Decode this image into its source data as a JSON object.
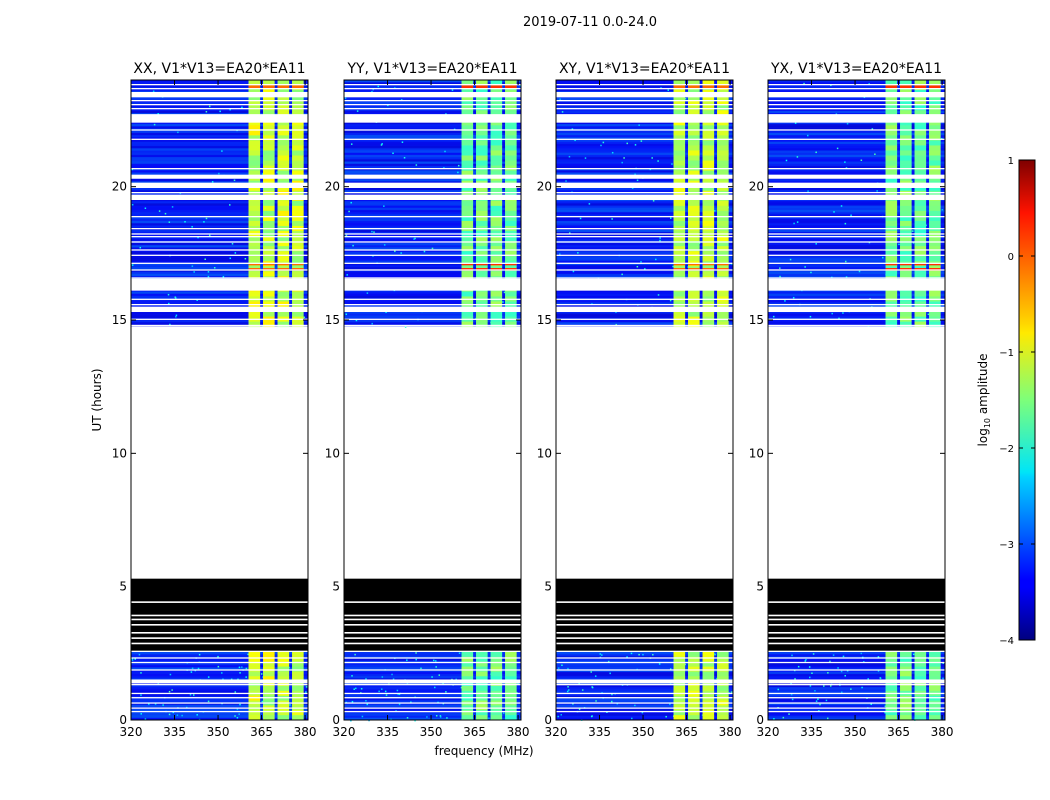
{
  "figure": {
    "suptitle": "2019-07-11 0.0-24.0",
    "xlabel": "frequency (MHz)",
    "ylabel": "UT (hours)"
  },
  "chart_data": {
    "type": "heatmap",
    "x_range_mhz": [
      320,
      381
    ],
    "y_range_hours": [
      0,
      24
    ],
    "xticks": [
      320,
      335,
      350,
      365,
      380
    ],
    "yticks": [
      0,
      5,
      10,
      15,
      20
    ],
    "baseline": "V1*V13=EA20*EA11",
    "panels": [
      {
        "pol": "XX",
        "title": "XX, V1*V13=EA20*EA11",
        "show_ylabel": true
      },
      {
        "pol": "YY",
        "title": "YY, V1*V13=EA20*EA11",
        "show_ylabel": false
      },
      {
        "pol": "XY",
        "title": "XY, V1*V13=EA20*EA11",
        "show_ylabel": false
      },
      {
        "pol": "YX",
        "title": "YX, V1*V13=EA20*EA11",
        "show_ylabel": false
      }
    ],
    "rfi_channel_bands_mhz": [
      [
        360.5,
        364.5
      ],
      [
        365.5,
        369.5
      ],
      [
        370.5,
        374.5
      ],
      [
        375.5,
        379.5
      ]
    ],
    "flagged_black_hours": [
      4.3,
      5.3
    ],
    "empty_no_data_hours": [
      5.3,
      14.75
    ],
    "data_time_ranges_hours": [
      [
        0,
        2.55
      ],
      [
        14.75,
        24
      ]
    ],
    "colorbar": {
      "label": "log10 amplitude",
      "min": -4,
      "max": 1,
      "ticks": [
        1,
        0,
        -1,
        -2,
        -3,
        -4
      ],
      "tick_labels": [
        "1",
        "0",
        "−1",
        "−2",
        "−3",
        "−4"
      ]
    }
  }
}
